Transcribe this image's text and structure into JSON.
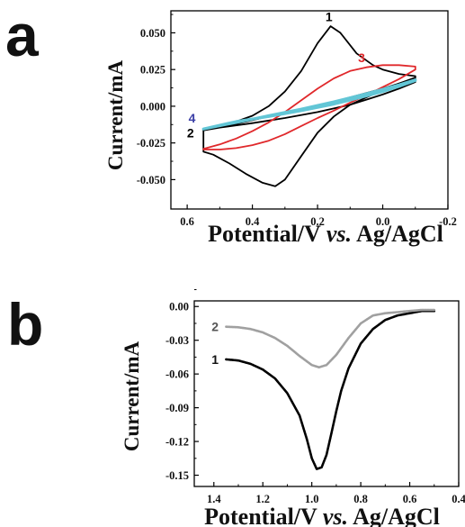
{
  "panels": {
    "a": {
      "label": "a"
    },
    "b": {
      "label": "b"
    }
  },
  "chart_data": [
    {
      "type": "line",
      "panel": "a",
      "xlabel": "Potential/V vs. Ag/AgCl",
      "xlabel_parts": [
        "Potential/V ",
        "vs.",
        " Ag/AgCl"
      ],
      "ylabel": "Current/mA",
      "xlim": [
        0.65,
        -0.2
      ],
      "ylim": [
        -0.07,
        0.065
      ],
      "xticks": [
        0.6,
        0.4,
        0.2,
        0.0,
        -0.2
      ],
      "xtick_labels": [
        "0.6",
        "0.4",
        "0.2",
        "0.0",
        "-0.2"
      ],
      "yticks": [
        0.05,
        0.025,
        0.0,
        -0.025,
        -0.05
      ],
      "ytick_labels": [
        "0.050",
        "0.025",
        "0.000",
        "-0.025",
        "-0.050"
      ],
      "x_reversed": true,
      "grid": false,
      "legend": "none",
      "series": [
        {
          "label": "1",
          "color": "#000000",
          "forward": [
            [
              0.55,
              -0.016
            ],
            [
              0.5,
              -0.0135
            ],
            [
              0.45,
              -0.0105
            ],
            [
              0.4,
              -0.0065
            ],
            [
              0.35,
              0.0
            ],
            [
              0.3,
              0.01
            ],
            [
              0.25,
              0.024
            ],
            [
              0.2,
              0.043
            ],
            [
              0.16,
              0.0545
            ],
            [
              0.13,
              0.05
            ],
            [
              0.08,
              0.036
            ],
            [
              0.03,
              0.028
            ],
            [
              0.0,
              0.025
            ],
            [
              -0.05,
              0.022
            ],
            [
              -0.1,
              0.0205
            ]
          ],
          "reverse": [
            [
              -0.1,
              0.0195
            ],
            [
              -0.05,
              0.0155
            ],
            [
              0.0,
              0.011
            ],
            [
              0.05,
              0.006
            ],
            [
              0.1,
              0.001
            ],
            [
              0.15,
              -0.007
            ],
            [
              0.2,
              -0.018
            ],
            [
              0.25,
              -0.034
            ],
            [
              0.3,
              -0.05
            ],
            [
              0.33,
              -0.0545
            ],
            [
              0.37,
              -0.052
            ],
            [
              0.42,
              -0.046
            ],
            [
              0.47,
              -0.039
            ],
            [
              0.52,
              -0.033
            ],
            [
              0.55,
              -0.031
            ]
          ]
        },
        {
          "label": "2",
          "color": "#000000",
          "forward": [
            [
              0.55,
              -0.0165
            ],
            [
              0.45,
              -0.012
            ],
            [
              0.35,
              -0.007
            ],
            [
              0.25,
              -0.002
            ],
            [
              0.15,
              0.003
            ],
            [
              0.1,
              0.006
            ],
            [
              0.05,
              0.009
            ],
            [
              0.0,
              0.012
            ],
            [
              -0.05,
              0.0155
            ],
            [
              -0.1,
              0.019
            ]
          ],
          "reverse": [
            [
              -0.1,
              0.0165
            ],
            [
              -0.05,
              0.012
            ],
            [
              0.0,
              0.008
            ],
            [
              0.05,
              0.0045
            ],
            [
              0.1,
              0.001
            ],
            [
              0.2,
              -0.004
            ],
            [
              0.3,
              -0.008
            ],
            [
              0.4,
              -0.0115
            ],
            [
              0.5,
              -0.0145
            ],
            [
              0.55,
              -0.0165
            ]
          ]
        },
        {
          "label": "3",
          "color": "#e0282b",
          "forward": [
            [
              0.55,
              -0.029
            ],
            [
              0.5,
              -0.026
            ],
            [
              0.45,
              -0.022
            ],
            [
              0.4,
              -0.017
            ],
            [
              0.35,
              -0.011
            ],
            [
              0.3,
              -0.004
            ],
            [
              0.25,
              0.004
            ],
            [
              0.2,
              0.012
            ],
            [
              0.15,
              0.019
            ],
            [
              0.1,
              0.024
            ],
            [
              0.05,
              0.0265
            ],
            [
              0.0,
              0.028
            ],
            [
              -0.05,
              0.028
            ],
            [
              -0.1,
              0.027
            ]
          ],
          "reverse": [
            [
              -0.1,
              0.025
            ],
            [
              -0.05,
              0.0185
            ],
            [
              0.0,
              0.013
            ],
            [
              0.05,
              0.0075
            ],
            [
              0.1,
              0.0025
            ],
            [
              0.15,
              -0.003
            ],
            [
              0.2,
              -0.008
            ],
            [
              0.25,
              -0.0135
            ],
            [
              0.3,
              -0.019
            ],
            [
              0.35,
              -0.0235
            ],
            [
              0.4,
              -0.0265
            ],
            [
              0.45,
              -0.0285
            ],
            [
              0.5,
              -0.0295
            ],
            [
              0.55,
              -0.0295
            ]
          ]
        },
        {
          "label": "4",
          "color": "#62c6d6",
          "forward": [
            [
              0.55,
              -0.0155
            ],
            [
              0.45,
              -0.011
            ],
            [
              0.35,
              -0.0065
            ],
            [
              0.25,
              -0.002
            ],
            [
              0.15,
              0.003
            ],
            [
              0.05,
              0.0085
            ],
            [
              0.0,
              0.0115
            ],
            [
              -0.05,
              0.0145
            ],
            [
              -0.1,
              0.018
            ]
          ],
          "reverse": [
            [
              -0.1,
              0.0175
            ],
            [
              -0.05,
              0.0135
            ],
            [
              0.0,
              0.01
            ],
            [
              0.05,
              0.007
            ],
            [
              0.15,
              0.0015
            ],
            [
              0.25,
              -0.003
            ],
            [
              0.35,
              -0.007
            ],
            [
              0.45,
              -0.0105
            ],
            [
              0.55,
              -0.0155
            ]
          ]
        }
      ],
      "curve_labels": [
        {
          "text": "1",
          "x": 0.165,
          "y": 0.061,
          "color": "#000000"
        },
        {
          "text": "3",
          "x": 0.065,
          "y": 0.033,
          "color": "#e0282b"
        },
        {
          "text": "4",
          "x": 0.585,
          "y": -0.008,
          "color": "#3b3fa6"
        },
        {
          "text": "2",
          "x": 0.59,
          "y": -0.018,
          "color": "#000000"
        }
      ]
    },
    {
      "type": "line",
      "panel": "b",
      "xlabel": "Potential/V vs. Ag/AgCl",
      "xlabel_parts": [
        "Potential/V ",
        "vs.",
        " Ag/AgCl"
      ],
      "ylabel": "Current/mA",
      "xlim": [
        1.48,
        0.4
      ],
      "ylim": [
        -0.16,
        0.005
      ],
      "xticks": [
        1.4,
        1.2,
        1.0,
        0.8,
        0.6,
        0.4
      ],
      "xtick_labels": [
        "1.4",
        "1.2",
        "1.0",
        "0.8",
        "0.6",
        "0.4"
      ],
      "yticks": [
        0.0,
        -0.03,
        -0.06,
        -0.09,
        -0.12,
        -0.15
      ],
      "ytick_labels": [
        "0.00",
        "-0.03",
        "-0.06",
        "-0.09",
        "-0.12",
        "-0.15"
      ],
      "x_reversed": true,
      "grid": false,
      "legend": "none",
      "series": [
        {
          "label": "1",
          "color": "#000000",
          "points": [
            [
              1.35,
              -0.047
            ],
            [
              1.3,
              -0.048
            ],
            [
              1.25,
              -0.051
            ],
            [
              1.2,
              -0.056
            ],
            [
              1.15,
              -0.064
            ],
            [
              1.1,
              -0.077
            ],
            [
              1.05,
              -0.097
            ],
            [
              1.02,
              -0.118
            ],
            [
              1.0,
              -0.135
            ],
            [
              0.98,
              -0.1445
            ],
            [
              0.96,
              -0.143
            ],
            [
              0.94,
              -0.132
            ],
            [
              0.92,
              -0.113
            ],
            [
              0.9,
              -0.093
            ],
            [
              0.88,
              -0.075
            ],
            [
              0.85,
              -0.055
            ],
            [
              0.8,
              -0.033
            ],
            [
              0.75,
              -0.02
            ],
            [
              0.7,
              -0.012
            ],
            [
              0.65,
              -0.008
            ],
            [
              0.6,
              -0.006
            ],
            [
              0.55,
              -0.004
            ],
            [
              0.5,
              -0.004
            ]
          ]
        },
        {
          "label": "2",
          "color": "#a0a0a0",
          "points": [
            [
              1.35,
              -0.018
            ],
            [
              1.3,
              -0.0185
            ],
            [
              1.25,
              -0.02
            ],
            [
              1.2,
              -0.023
            ],
            [
              1.15,
              -0.028
            ],
            [
              1.1,
              -0.035
            ],
            [
              1.05,
              -0.044
            ],
            [
              1.0,
              -0.052
            ],
            [
              0.97,
              -0.054
            ],
            [
              0.94,
              -0.052
            ],
            [
              0.9,
              -0.043
            ],
            [
              0.85,
              -0.028
            ],
            [
              0.8,
              -0.015
            ],
            [
              0.75,
              -0.008
            ],
            [
              0.7,
              -0.006
            ],
            [
              0.65,
              -0.005
            ],
            [
              0.6,
              -0.004
            ],
            [
              0.55,
              -0.003
            ],
            [
              0.5,
              -0.003
            ]
          ]
        }
      ],
      "curve_labels": [
        {
          "text": "2",
          "x": 1.395,
          "y": -0.018,
          "color": "#555555"
        },
        {
          "text": "1",
          "x": 1.395,
          "y": -0.047,
          "color": "#111111"
        }
      ]
    }
  ]
}
